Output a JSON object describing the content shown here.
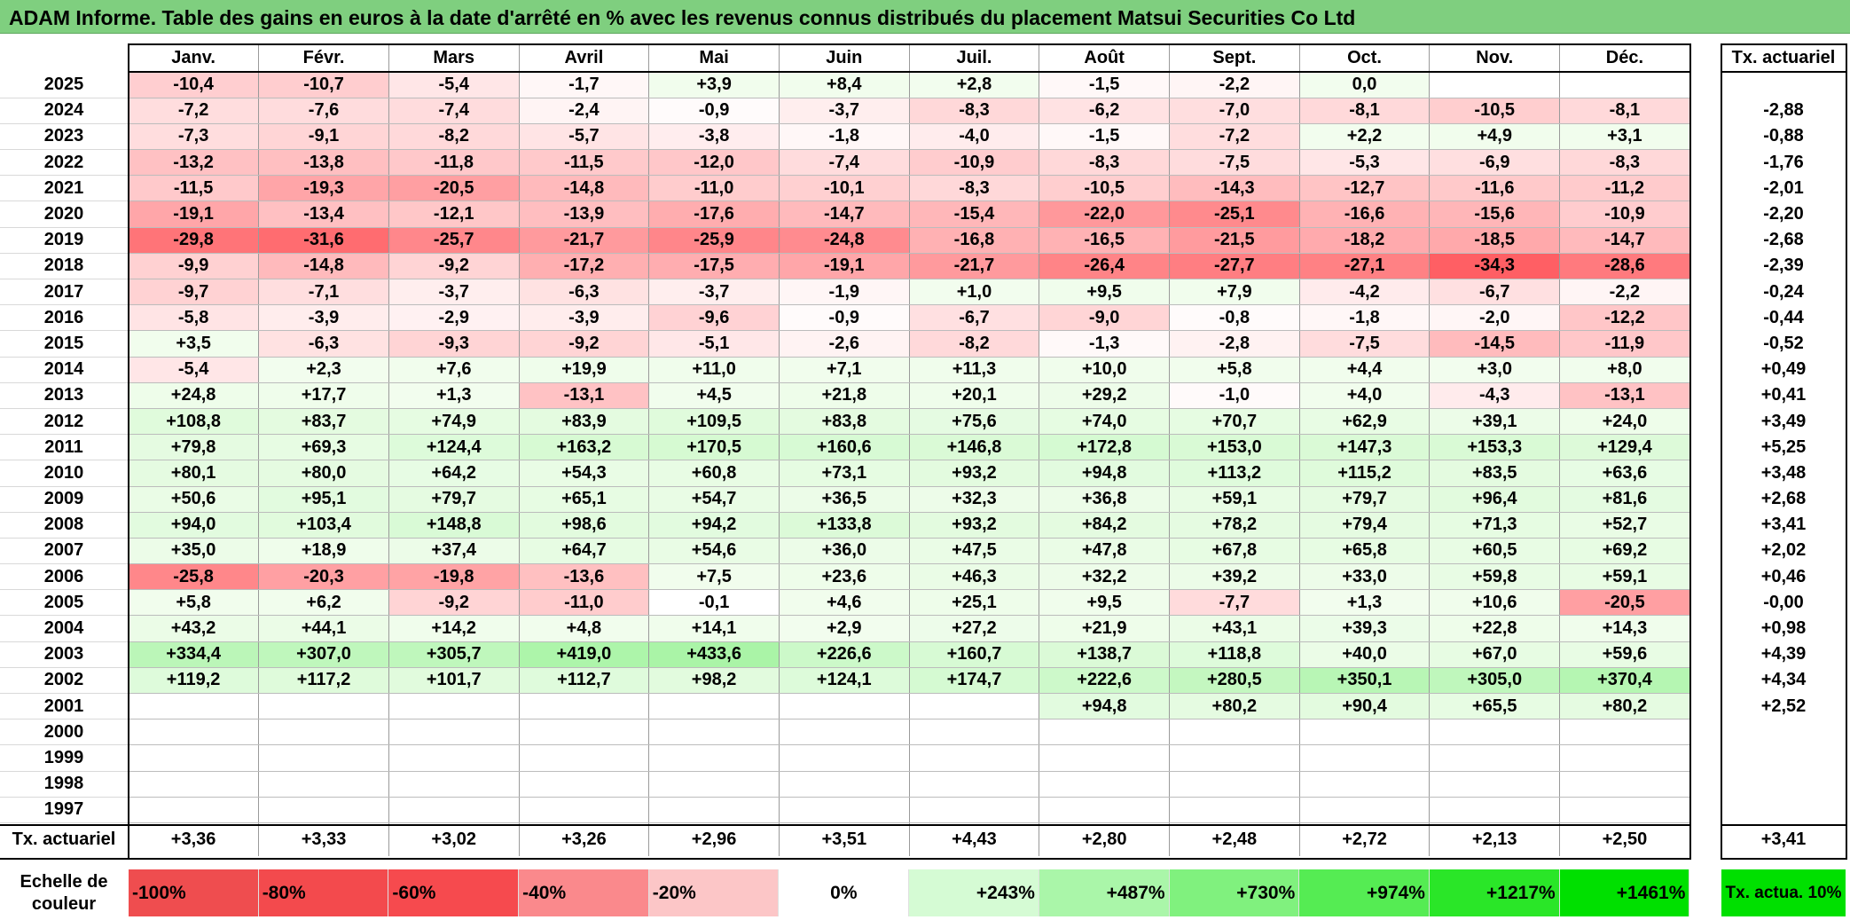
{
  "title": "ADAM Informe. Table des gains en euros à la date d'arrêté en % avec les revenus connus distribués du placement Matsui Securities Co Ltd",
  "months": [
    "Janv.",
    "Févr.",
    "Mars",
    "Avril",
    "Mai",
    "Juin",
    "Juil.",
    "Août",
    "Sept.",
    "Oct.",
    "Nov.",
    "Déc."
  ],
  "annual_header": "Tx. actuariel",
  "rows": [
    {
      "year": "2025",
      "v": [
        "-10,4",
        "-10,7",
        "-5,4",
        "-1,7",
        "+3,9",
        "+8,4",
        "+2,8",
        "-1,5",
        "-2,2",
        "0,0",
        "",
        ""
      ],
      "a": ""
    },
    {
      "year": "2024",
      "v": [
        "-7,2",
        "-7,6",
        "-7,4",
        "-2,4",
        "-0,9",
        "-3,7",
        "-8,3",
        "-6,2",
        "-7,0",
        "-8,1",
        "-10,5",
        "-8,1"
      ],
      "a": "-2,88"
    },
    {
      "year": "2023",
      "v": [
        "-7,3",
        "-9,1",
        "-8,2",
        "-5,7",
        "-3,8",
        "-1,8",
        "-4,0",
        "-1,5",
        "-7,2",
        "+2,2",
        "+4,9",
        "+3,1"
      ],
      "a": "-0,88"
    },
    {
      "year": "2022",
      "v": [
        "-13,2",
        "-13,8",
        "-11,8",
        "-11,5",
        "-12,0",
        "-7,4",
        "-10,9",
        "-8,3",
        "-7,5",
        "-5,3",
        "-6,9",
        "-8,3"
      ],
      "a": "-1,76"
    },
    {
      "year": "2021",
      "v": [
        "-11,5",
        "-19,3",
        "-20,5",
        "-14,8",
        "-11,0",
        "-10,1",
        "-8,3",
        "-10,5",
        "-14,3",
        "-12,7",
        "-11,6",
        "-11,2"
      ],
      "a": "-2,01"
    },
    {
      "year": "2020",
      "v": [
        "-19,1",
        "-13,4",
        "-12,1",
        "-13,9",
        "-17,6",
        "-14,7",
        "-15,4",
        "-22,0",
        "-25,1",
        "-16,6",
        "-15,6",
        "-10,9"
      ],
      "a": "-2,20"
    },
    {
      "year": "2019",
      "v": [
        "-29,8",
        "-31,6",
        "-25,7",
        "-21,7",
        "-25,9",
        "-24,8",
        "-16,8",
        "-16,5",
        "-21,5",
        "-18,2",
        "-18,5",
        "-14,7"
      ],
      "a": "-2,68"
    },
    {
      "year": "2018",
      "v": [
        "-9,9",
        "-14,8",
        "-9,2",
        "-17,2",
        "-17,5",
        "-19,1",
        "-21,7",
        "-26,4",
        "-27,7",
        "-27,1",
        "-34,3",
        "-28,6"
      ],
      "a": "-2,39"
    },
    {
      "year": "2017",
      "v": [
        "-9,7",
        "-7,1",
        "-3,7",
        "-6,3",
        "-3,7",
        "-1,9",
        "+1,0",
        "+9,5",
        "+7,9",
        "-4,2",
        "-6,7",
        "-2,2"
      ],
      "a": "-0,24"
    },
    {
      "year": "2016",
      "v": [
        "-5,8",
        "-3,9",
        "-2,9",
        "-3,9",
        "-9,6",
        "-0,9",
        "-6,7",
        "-9,0",
        "-0,8",
        "-1,8",
        "-2,0",
        "-12,2"
      ],
      "a": "-0,44"
    },
    {
      "year": "2015",
      "v": [
        "+3,5",
        "-6,3",
        "-9,3",
        "-9,2",
        "-5,1",
        "-2,6",
        "-8,2",
        "-1,3",
        "-2,8",
        "-7,5",
        "-14,5",
        "-11,9"
      ],
      "a": "-0,52"
    },
    {
      "year": "2014",
      "v": [
        "-5,4",
        "+2,3",
        "+7,6",
        "+19,9",
        "+11,0",
        "+7,1",
        "+11,3",
        "+10,0",
        "+5,8",
        "+4,4",
        "+3,0",
        "+8,0"
      ],
      "a": "+0,49"
    },
    {
      "year": "2013",
      "v": [
        "+24,8",
        "+17,7",
        "+1,3",
        "-13,1",
        "+4,5",
        "+21,8",
        "+20,1",
        "+29,2",
        "-1,0",
        "+4,0",
        "-4,3",
        "-13,1"
      ],
      "a": "+0,41"
    },
    {
      "year": "2012",
      "v": [
        "+108,8",
        "+83,7",
        "+74,9",
        "+83,9",
        "+109,5",
        "+83,8",
        "+75,6",
        "+74,0",
        "+70,7",
        "+62,9",
        "+39,1",
        "+24,0"
      ],
      "a": "+3,49"
    },
    {
      "year": "2011",
      "v": [
        "+79,8",
        "+69,3",
        "+124,4",
        "+163,2",
        "+170,5",
        "+160,6",
        "+146,8",
        "+172,8",
        "+153,0",
        "+147,3",
        "+153,3",
        "+129,4"
      ],
      "a": "+5,25"
    },
    {
      "year": "2010",
      "v": [
        "+80,1",
        "+80,0",
        "+64,2",
        "+54,3",
        "+60,8",
        "+73,1",
        "+93,2",
        "+94,8",
        "+113,2",
        "+115,2",
        "+83,5",
        "+63,6"
      ],
      "a": "+3,48"
    },
    {
      "year": "2009",
      "v": [
        "+50,6",
        "+95,1",
        "+79,7",
        "+65,1",
        "+54,7",
        "+36,5",
        "+32,3",
        "+36,8",
        "+59,1",
        "+79,7",
        "+96,4",
        "+81,6"
      ],
      "a": "+2,68"
    },
    {
      "year": "2008",
      "v": [
        "+94,0",
        "+103,4",
        "+148,8",
        "+98,6",
        "+94,2",
        "+133,8",
        "+93,2",
        "+84,2",
        "+78,2",
        "+79,4",
        "+71,3",
        "+52,7"
      ],
      "a": "+3,41"
    },
    {
      "year": "2007",
      "v": [
        "+35,0",
        "+18,9",
        "+37,4",
        "+64,7",
        "+54,6",
        "+36,0",
        "+47,5",
        "+47,8",
        "+67,8",
        "+65,8",
        "+60,5",
        "+69,2"
      ],
      "a": "+2,02"
    },
    {
      "year": "2006",
      "v": [
        "-25,8",
        "-20,3",
        "-19,8",
        "-13,6",
        "+7,5",
        "+23,6",
        "+46,3",
        "+32,2",
        "+39,2",
        "+33,0",
        "+59,8",
        "+59,1"
      ],
      "a": "+0,46"
    },
    {
      "year": "2005",
      "v": [
        "+5,8",
        "+6,2",
        "-9,2",
        "-11,0",
        "-0,1",
        "+4,6",
        "+25,1",
        "+9,5",
        "-7,7",
        "+1,3",
        "+10,6",
        "-20,5"
      ],
      "a": "-0,00"
    },
    {
      "year": "2004",
      "v": [
        "+43,2",
        "+44,1",
        "+14,2",
        "+4,8",
        "+14,1",
        "+2,9",
        "+27,2",
        "+21,9",
        "+43,1",
        "+39,3",
        "+22,8",
        "+14,3"
      ],
      "a": "+0,98"
    },
    {
      "year": "2003",
      "v": [
        "+334,4",
        "+307,0",
        "+305,7",
        "+419,0",
        "+433,6",
        "+226,6",
        "+160,7",
        "+138,7",
        "+118,8",
        "+40,0",
        "+67,0",
        "+59,6"
      ],
      "a": "+4,39"
    },
    {
      "year": "2002",
      "v": [
        "+119,2",
        "+117,2",
        "+101,7",
        "+112,7",
        "+98,2",
        "+124,1",
        "+174,7",
        "+222,6",
        "+280,5",
        "+350,1",
        "+305,0",
        "+370,4"
      ],
      "a": "+4,34"
    },
    {
      "year": "2001",
      "v": [
        "",
        "",
        "",
        "",
        "",
        "",
        "",
        "+94,8",
        "+80,2",
        "+90,4",
        "+65,5",
        "+80,2"
      ],
      "a": "+2,52"
    },
    {
      "year": "2000",
      "v": [
        "",
        "",
        "",
        "",
        "",
        "",
        "",
        "",
        "",
        "",
        "",
        ""
      ],
      "a": ""
    },
    {
      "year": "1999",
      "v": [
        "",
        "",
        "",
        "",
        "",
        "",
        "",
        "",
        "",
        "",
        "",
        ""
      ],
      "a": ""
    },
    {
      "year": "1998",
      "v": [
        "",
        "",
        "",
        "",
        "",
        "",
        "",
        "",
        "",
        "",
        "",
        ""
      ],
      "a": ""
    },
    {
      "year": "1997",
      "v": [
        "",
        "",
        "",
        "",
        "",
        "",
        "",
        "",
        "",
        "",
        "",
        ""
      ],
      "a": ""
    }
  ],
  "summary": {
    "label": "Tx. actuariel",
    "values": [
      "+3,36",
      "+3,33",
      "+3,02",
      "+3,26",
      "+2,96",
      "+3,51",
      "+4,43",
      "+2,80",
      "+2,48",
      "+2,72",
      "+2,13",
      "+2,50"
    ],
    "overall": "+3,41"
  },
  "scale": {
    "label": "Echelle de couleur",
    "steps": [
      {
        "text": "-100%",
        "color": "#ef4d4f"
      },
      {
        "text": "-80%",
        "color": "#f34a4d"
      },
      {
        "text": "-60%",
        "color": "#f64a4e"
      },
      {
        "text": "-40%",
        "color": "#fa898c"
      },
      {
        "text": "-20%",
        "color": "#fcc6c7"
      },
      {
        "text": "0%",
        "color": "#ffffff"
      },
      {
        "text": "+243%",
        "color": "#d5fbd4"
      },
      {
        "text": "+487%",
        "color": "#aaf6a9"
      },
      {
        "text": "+730%",
        "color": "#80f17e"
      },
      {
        "text": "+974%",
        "color": "#55ec53"
      },
      {
        "text": "+1217%",
        "color": "#2ae628"
      },
      {
        "text": "+1461%",
        "color": "#00e000"
      }
    ],
    "annual_label": "Tx. actua. 10%",
    "annual_color": "#00e000"
  }
}
